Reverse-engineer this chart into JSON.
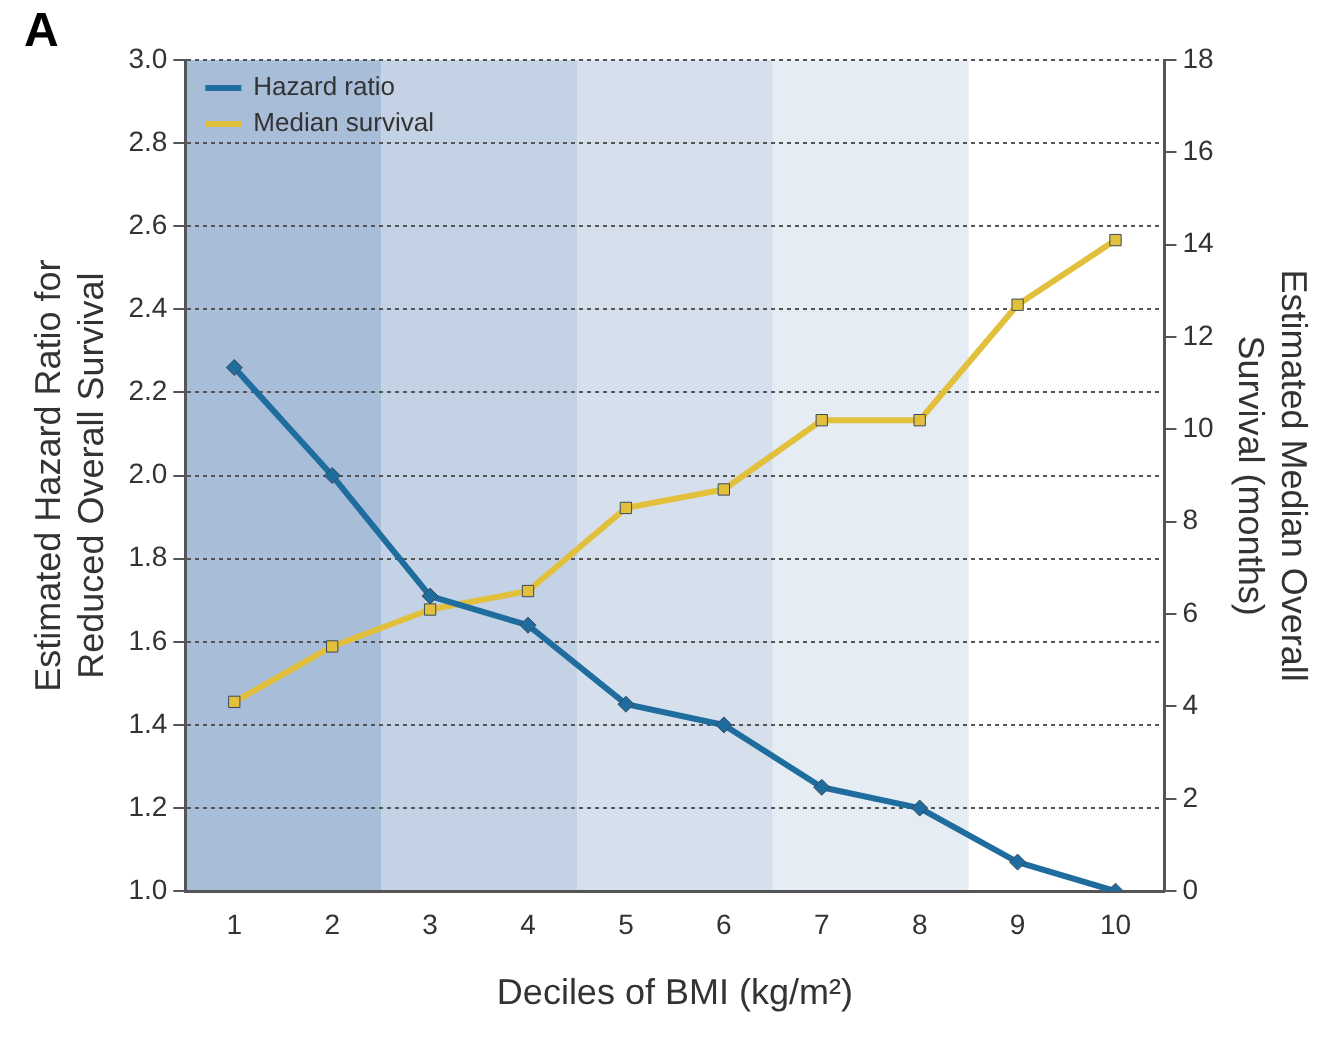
{
  "chart_data": {
    "type": "line",
    "title": "A",
    "xlabel": "Deciles of BMI (kg/m²)",
    "ylabel": "Estimated Hazard Ratio for\nReduced Overall Survival",
    "y2label": "Estimated Median Overall\nSurvival (months)",
    "categories": [
      "1",
      "2",
      "3",
      "4",
      "5",
      "6",
      "7",
      "8",
      "9",
      "10"
    ],
    "series": [
      {
        "name": "Hazard ratio",
        "color": "#1f6c9e",
        "marker": "diamond",
        "values": [
          2.26,
          2.0,
          1.71,
          1.64,
          1.45,
          1.4,
          1.25,
          1.2,
          1.07,
          1.0
        ]
      },
      {
        "name": "Median survival",
        "color": "#e3c03c",
        "marker": "square",
        "axis": "y2",
        "values": [
          4.1,
          5.3,
          6.1,
          6.5,
          8.3,
          8.7,
          10.2,
          10.2,
          12.7,
          14.1
        ]
      }
    ],
    "ylim": [
      1.0,
      3.0
    ],
    "yticks": [
      {
        "value": 1.0,
        "label": "1.0"
      },
      {
        "value": 1.2,
        "label": "1.2"
      },
      {
        "value": 1.4,
        "label": "1.4"
      },
      {
        "value": 1.6,
        "label": "1.6"
      },
      {
        "value": 1.8,
        "label": "1.8"
      },
      {
        "value": 2.0,
        "label": "2.0"
      },
      {
        "value": 2.2,
        "label": "2.2"
      },
      {
        "value": 2.4,
        "label": "2.4"
      },
      {
        "value": 2.6,
        "label": "2.6"
      },
      {
        "value": 2.8,
        "label": "2.8"
      },
      {
        "value": 3.0,
        "label": "3.0"
      }
    ],
    "y2lim": [
      0,
      18
    ],
    "y2ticks": [
      0,
      2,
      4,
      6,
      8,
      10,
      12,
      14,
      16,
      18
    ],
    "bands": [
      {
        "axis": "x",
        "from": "1",
        "to": "2",
        "color": "#a8bdd8"
      },
      {
        "axis": "x",
        "from": "3",
        "to": "4",
        "color": "#c3d2e5"
      },
      {
        "axis": "x",
        "from": "5",
        "to": "6",
        "color": "#d6e0ec"
      },
      {
        "axis": "x",
        "from": "7",
        "to": "8",
        "color": "#e6ecf4"
      }
    ],
    "grid": "y",
    "legend": "top left",
    "line_style": "solid"
  }
}
